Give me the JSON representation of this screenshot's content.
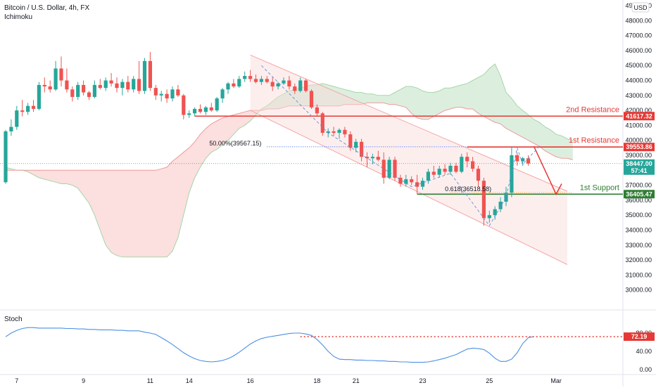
{
  "header": {
    "symbol_title": "Bitcoin / U.S. Dollar, 4h, FX",
    "indicator": "Ichimoku",
    "currency": "USD"
  },
  "colors": {
    "up": "#26a69a",
    "down": "#ef5350",
    "resistance": "#e53935",
    "support": "#2e7d32",
    "stoch_line": "#4a90e2",
    "cloud_red": "#fbd9d9",
    "cloud_green": "#d6ecd9",
    "channel": "#f3a6a6"
  },
  "chart_data": [
    {
      "type": "candlestick",
      "title": "Bitcoin / U.S. Dollar, 4h, FX",
      "ylim": [
        29000,
        49000
      ],
      "y_ticks": [
        30000,
        31000,
        32000,
        33000,
        34000,
        35000,
        36000,
        37000,
        38000,
        39000,
        40000,
        41000,
        42000,
        43000,
        44000,
        45000,
        46000,
        47000,
        48000,
        49000
      ],
      "x_tick_labels": [
        {
          "label": "7",
          "index": 2
        },
        {
          "label": "9",
          "index": 14
        },
        {
          "label": "11",
          "index": 26
        },
        {
          "label": "14",
          "index": 33
        },
        {
          "label": "16",
          "index": 44
        },
        {
          "label": "18",
          "index": 56
        },
        {
          "label": "21",
          "index": 63
        },
        {
          "label": "23",
          "index": 75
        },
        {
          "label": "25",
          "index": 87
        },
        {
          "label": "Mar",
          "index": 99
        }
      ],
      "candles": [
        {
          "o": 37200,
          "h": 40700,
          "l": 37100,
          "c": 40600
        },
        {
          "o": 40600,
          "h": 41400,
          "l": 40300,
          "c": 40900
        },
        {
          "o": 40900,
          "h": 42300,
          "l": 40700,
          "c": 42000
        },
        {
          "o": 42000,
          "h": 42700,
          "l": 41600,
          "c": 41900
        },
        {
          "o": 41900,
          "h": 42500,
          "l": 41700,
          "c": 42300
        },
        {
          "o": 42300,
          "h": 42700,
          "l": 41900,
          "c": 42100
        },
        {
          "o": 42100,
          "h": 43900,
          "l": 42000,
          "c": 43700
        },
        {
          "o": 43700,
          "h": 44200,
          "l": 43200,
          "c": 43600
        },
        {
          "o": 43600,
          "h": 44000,
          "l": 43200,
          "c": 43400
        },
        {
          "o": 43400,
          "h": 45300,
          "l": 43300,
          "c": 44800
        },
        {
          "o": 44800,
          "h": 45600,
          "l": 43600,
          "c": 44000
        },
        {
          "o": 44000,
          "h": 44800,
          "l": 43200,
          "c": 43400
        },
        {
          "o": 43400,
          "h": 43600,
          "l": 42600,
          "c": 42900
        },
        {
          "o": 42900,
          "h": 43900,
          "l": 42700,
          "c": 43700
        },
        {
          "o": 43700,
          "h": 44000,
          "l": 43000,
          "c": 43200
        },
        {
          "o": 43200,
          "h": 43300,
          "l": 42700,
          "c": 42900
        },
        {
          "o": 42900,
          "h": 44000,
          "l": 42800,
          "c": 43700
        },
        {
          "o": 43700,
          "h": 44100,
          "l": 43400,
          "c": 43500
        },
        {
          "o": 43500,
          "h": 44200,
          "l": 43300,
          "c": 44000
        },
        {
          "o": 44000,
          "h": 44500,
          "l": 43600,
          "c": 43800
        },
        {
          "o": 43800,
          "h": 44200,
          "l": 43200,
          "c": 43500
        },
        {
          "o": 43500,
          "h": 44100,
          "l": 43000,
          "c": 43900
        },
        {
          "o": 43900,
          "h": 44300,
          "l": 43200,
          "c": 43400
        },
        {
          "o": 43400,
          "h": 44300,
          "l": 43200,
          "c": 44100
        },
        {
          "o": 44100,
          "h": 45300,
          "l": 43100,
          "c": 43300
        },
        {
          "o": 43300,
          "h": 45500,
          "l": 43100,
          "c": 45300
        },
        {
          "o": 45300,
          "h": 45900,
          "l": 43300,
          "c": 43500
        },
        {
          "o": 43500,
          "h": 43700,
          "l": 42700,
          "c": 43000
        },
        {
          "o": 43000,
          "h": 43300,
          "l": 42600,
          "c": 43100
        },
        {
          "o": 43100,
          "h": 43400,
          "l": 42500,
          "c": 42800
        },
        {
          "o": 42800,
          "h": 43600,
          "l": 42600,
          "c": 43400
        },
        {
          "o": 43400,
          "h": 43700,
          "l": 42900,
          "c": 43000
        },
        {
          "o": 43000,
          "h": 43100,
          "l": 41400,
          "c": 41700
        },
        {
          "o": 41700,
          "h": 42000,
          "l": 41500,
          "c": 41800
        },
        {
          "o": 41800,
          "h": 42200,
          "l": 41600,
          "c": 42100
        },
        {
          "o": 42100,
          "h": 42400,
          "l": 41800,
          "c": 41900
        },
        {
          "o": 41900,
          "h": 42300,
          "l": 41700,
          "c": 42200
        },
        {
          "o": 42200,
          "h": 42500,
          "l": 41900,
          "c": 42000
        },
        {
          "o": 42000,
          "h": 42900,
          "l": 41900,
          "c": 42800
        },
        {
          "o": 42800,
          "h": 43500,
          "l": 42500,
          "c": 43400
        },
        {
          "o": 43400,
          "h": 43900,
          "l": 43100,
          "c": 43800
        },
        {
          "o": 43800,
          "h": 44100,
          "l": 43500,
          "c": 43600
        },
        {
          "o": 43600,
          "h": 44300,
          "l": 43500,
          "c": 44100
        },
        {
          "o": 44100,
          "h": 44600,
          "l": 43900,
          "c": 44300
        },
        {
          "o": 44300,
          "h": 44700,
          "l": 43900,
          "c": 44100
        },
        {
          "o": 44100,
          "h": 44400,
          "l": 43800,
          "c": 43900
        },
        {
          "o": 43900,
          "h": 44300,
          "l": 43700,
          "c": 44100
        },
        {
          "o": 44100,
          "h": 44300,
          "l": 43800,
          "c": 43900
        },
        {
          "o": 43900,
          "h": 44200,
          "l": 43300,
          "c": 43600
        },
        {
          "o": 43600,
          "h": 43900,
          "l": 43400,
          "c": 43800
        },
        {
          "o": 43800,
          "h": 44200,
          "l": 43700,
          "c": 44000
        },
        {
          "o": 44000,
          "h": 44300,
          "l": 43400,
          "c": 43600
        },
        {
          "o": 43600,
          "h": 43800,
          "l": 43100,
          "c": 43300
        },
        {
          "o": 43300,
          "h": 44200,
          "l": 43200,
          "c": 44000
        },
        {
          "o": 44000,
          "h": 44100,
          "l": 43200,
          "c": 43300
        },
        {
          "o": 43300,
          "h": 43400,
          "l": 42100,
          "c": 42200
        },
        {
          "o": 42200,
          "h": 42400,
          "l": 41600,
          "c": 41800
        },
        {
          "o": 41800,
          "h": 41900,
          "l": 40300,
          "c": 40500
        },
        {
          "o": 40500,
          "h": 40800,
          "l": 40200,
          "c": 40600
        },
        {
          "o": 40600,
          "h": 40900,
          "l": 40300,
          "c": 40500
        },
        {
          "o": 40500,
          "h": 40800,
          "l": 40100,
          "c": 40700
        },
        {
          "o": 40700,
          "h": 40900,
          "l": 40200,
          "c": 40400
        },
        {
          "o": 40400,
          "h": 40600,
          "l": 39300,
          "c": 39500
        },
        {
          "o": 39500,
          "h": 40100,
          "l": 39200,
          "c": 39900
        },
        {
          "o": 39900,
          "h": 40100,
          "l": 38600,
          "c": 38900
        },
        {
          "o": 38900,
          "h": 39200,
          "l": 38200,
          "c": 38800
        },
        {
          "o": 38800,
          "h": 39100,
          "l": 38400,
          "c": 38900
        },
        {
          "o": 38900,
          "h": 39300,
          "l": 38600,
          "c": 38700
        },
        {
          "o": 38700,
          "h": 39200,
          "l": 37100,
          "c": 37500
        },
        {
          "o": 37500,
          "h": 38900,
          "l": 37400,
          "c": 38700
        },
        {
          "o": 38700,
          "h": 38900,
          "l": 37300,
          "c": 37500
        },
        {
          "o": 37500,
          "h": 37700,
          "l": 36900,
          "c": 37100
        },
        {
          "o": 37100,
          "h": 37700,
          "l": 36900,
          "c": 37400
        },
        {
          "o": 37400,
          "h": 37600,
          "l": 37000,
          "c": 37200
        },
        {
          "o": 37200,
          "h": 37700,
          "l": 36400,
          "c": 36900
        },
        {
          "o": 36900,
          "h": 37500,
          "l": 36700,
          "c": 37300
        },
        {
          "o": 37300,
          "h": 38100,
          "l": 37100,
          "c": 37900
        },
        {
          "o": 37900,
          "h": 38300,
          "l": 37500,
          "c": 37700
        },
        {
          "o": 37700,
          "h": 38300,
          "l": 37500,
          "c": 38100
        },
        {
          "o": 38100,
          "h": 38400,
          "l": 37700,
          "c": 37900
        },
        {
          "o": 37900,
          "h": 38500,
          "l": 37700,
          "c": 38300
        },
        {
          "o": 38300,
          "h": 38500,
          "l": 37800,
          "c": 37900
        },
        {
          "o": 37900,
          "h": 39100,
          "l": 37800,
          "c": 38900
        },
        {
          "o": 38900,
          "h": 39200,
          "l": 38200,
          "c": 38600
        },
        {
          "o": 38600,
          "h": 38900,
          "l": 37900,
          "c": 38100
        },
        {
          "o": 38100,
          "h": 38300,
          "l": 36900,
          "c": 37300
        },
        {
          "o": 37300,
          "h": 37500,
          "l": 34300,
          "c": 34800
        },
        {
          "o": 34800,
          "h": 35300,
          "l": 34500,
          "c": 35000
        },
        {
          "o": 35000,
          "h": 35600,
          "l": 34700,
          "c": 35400
        },
        {
          "o": 35400,
          "h": 36200,
          "l": 35200,
          "c": 35900
        },
        {
          "o": 35900,
          "h": 36900,
          "l": 35600,
          "c": 36500
        },
        {
          "o": 36500,
          "h": 39600,
          "l": 36200,
          "c": 39000
        },
        {
          "o": 39000,
          "h": 39200,
          "l": 38300,
          "c": 38600
        },
        {
          "o": 38600,
          "h": 38900,
          "l": 38300,
          "c": 38800
        },
        {
          "o": 38800,
          "h": 39000,
          "l": 38300,
          "c": 38447
        }
      ],
      "horizontal_levels": [
        {
          "name": "2nd Resistance",
          "value": 41617.32,
          "label": "41617.32"
        },
        {
          "name": "1st Resistance",
          "value": 39553.86,
          "label": "39553.86"
        },
        {
          "name": "1st Support",
          "value": 36405.47,
          "label": "36405.47"
        }
      ],
      "annotations": {
        "res2_text": "2nd Resistance",
        "res1_text": "1st Resistance",
        "sup1_text": "1st Support",
        "fib50_text": "50.00%(39567.15)",
        "fib_618_text": "0.618(36518.58)"
      },
      "last_price": {
        "value": 38447.0,
        "label": "38447.00",
        "timer": "57:41"
      },
      "ichimoku": {
        "span_a": [
          38200,
          38100,
          38000,
          38000,
          37900,
          37700,
          37500,
          37400,
          37300,
          37200,
          37100,
          37100,
          37000,
          36800,
          36300,
          35800,
          35000,
          34000,
          33000,
          32500,
          32300,
          32200,
          32200,
          32200,
          32200,
          32200,
          32200,
          32200,
          32200,
          32200,
          32600,
          33500,
          35000,
          36500,
          37500,
          38200,
          38800,
          39200,
          39400,
          39700,
          40000,
          40400,
          40800,
          41000,
          41300,
          41700,
          42100,
          42300,
          42600,
          42900,
          43100,
          43300,
          43400,
          43500,
          43600,
          43700,
          43700,
          43800,
          43700,
          43600,
          43500,
          43400,
          43300,
          43200,
          43200,
          43100,
          43100,
          43000,
          43000,
          43000,
          43200,
          43400,
          43600,
          43600,
          43500,
          43300,
          43200,
          43200,
          43300,
          43500,
          43500,
          43600,
          43700,
          43800,
          44000,
          44200,
          44400,
          44800,
          45100,
          44300,
          43200,
          42800,
          42300,
          42000,
          41700,
          41400,
          41200,
          40900,
          40700,
          40400,
          40300,
          40100,
          40000
        ],
        "span_b": [
          38000,
          38000,
          38000,
          38000,
          38000,
          38000,
          38000,
          38000,
          38000,
          38000,
          38000,
          38000,
          38000,
          38000,
          38000,
          38000,
          38000,
          38000,
          38000,
          38000,
          38000,
          38000,
          38000,
          38000,
          38000,
          38000,
          38000,
          38000,
          38100,
          38200,
          38600,
          38900,
          39200,
          39500,
          39900,
          40400,
          40800,
          41100,
          41300,
          41500,
          41600,
          41700,
          41800,
          41900,
          42000,
          42000,
          42000,
          42100,
          42100,
          42100,
          42200,
          42300,
          42300,
          42300,
          42300,
          42300,
          42300,
          42300,
          42300,
          42300,
          42300,
          42400,
          42400,
          42400,
          42400,
          42500,
          42500,
          42500,
          42500,
          42400,
          42400,
          42300,
          42200,
          41800,
          41500,
          41400,
          41400,
          41600,
          41800,
          42000,
          42100,
          42200,
          42200,
          42100,
          42100,
          41800,
          41600,
          41400,
          41200,
          41100,
          40800,
          40600,
          40400,
          40200,
          40000,
          39800,
          39600,
          39300,
          39100,
          38900,
          38800,
          38800,
          38700
        ]
      },
      "channel": {
        "upper": [
          {
            "idx": 44,
            "value": 45700
          },
          {
            "idx": 101,
            "value": 36600
          }
        ],
        "lower": [
          {
            "idx": 44,
            "value": 42000
          },
          {
            "idx": 101,
            "value": 31700
          }
        ]
      },
      "projection_arrow": [
        {
          "idx": 95,
          "value": 39600
        },
        {
          "idx": 99,
          "value": 36400
        },
        {
          "idx": 100,
          "value": 37100
        }
      ]
    },
    {
      "type": "line",
      "title": "Stoch",
      "ylim": [
        0,
        100
      ],
      "y_ticks": [
        0,
        40,
        80
      ],
      "y_tick_labels": [
        "0.00",
        "40.00",
        "80.00"
      ],
      "series": [
        {
          "values": [
            72,
            80,
            86,
            90,
            92,
            92,
            91,
            91,
            91,
            91,
            91,
            90,
            90,
            89,
            89,
            88,
            88,
            87,
            87,
            87,
            86,
            86,
            85,
            85,
            85,
            82,
            80,
            77,
            70,
            63,
            55,
            46,
            37,
            30,
            24,
            20,
            18,
            17,
            18,
            20,
            24,
            30,
            38,
            47,
            56,
            63,
            68,
            71,
            73,
            75,
            77,
            79,
            80,
            80,
            78,
            75,
            66,
            54,
            40,
            29,
            23,
            22,
            22,
            21,
            21,
            20,
            20,
            19,
            19,
            18,
            18,
            17,
            17,
            16,
            16,
            16,
            17,
            19,
            22,
            25,
            29,
            33,
            39,
            45,
            47,
            46,
            44,
            36,
            25,
            18,
            18,
            23,
            37,
            57,
            70,
            72.19
          ]
        }
      ],
      "level_line": {
        "value": 72.19,
        "label": "72.19"
      }
    }
  ]
}
